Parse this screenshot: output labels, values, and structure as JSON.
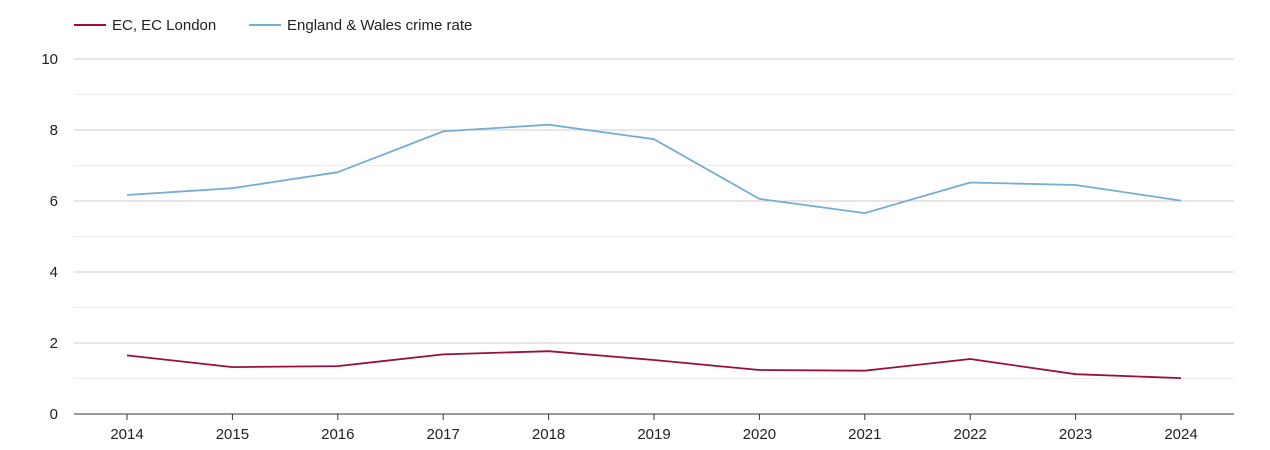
{
  "chart_data": {
    "type": "line",
    "title": "",
    "xlabel": "",
    "ylabel": "",
    "categories": [
      "2014",
      "2015",
      "2016",
      "2017",
      "2018",
      "2019",
      "2020",
      "2021",
      "2022",
      "2023",
      "2024"
    ],
    "ylim": [
      0,
      10
    ],
    "yticks": [
      0,
      2,
      4,
      6,
      8,
      10
    ],
    "grid": true,
    "legend_position": "top-left",
    "series": [
      {
        "name": "EC, EC London",
        "color": "#9b0f3a",
        "values": [
          1.65,
          1.32,
          1.35,
          1.68,
          1.77,
          1.52,
          1.24,
          1.22,
          1.55,
          1.12,
          1.01
        ]
      },
      {
        "name": "England & Wales crime rate",
        "color": "#74aed3",
        "values": [
          6.17,
          6.36,
          6.81,
          7.96,
          8.15,
          7.74,
          6.06,
          5.66,
          6.52,
          6.45,
          6.01
        ]
      }
    ]
  }
}
